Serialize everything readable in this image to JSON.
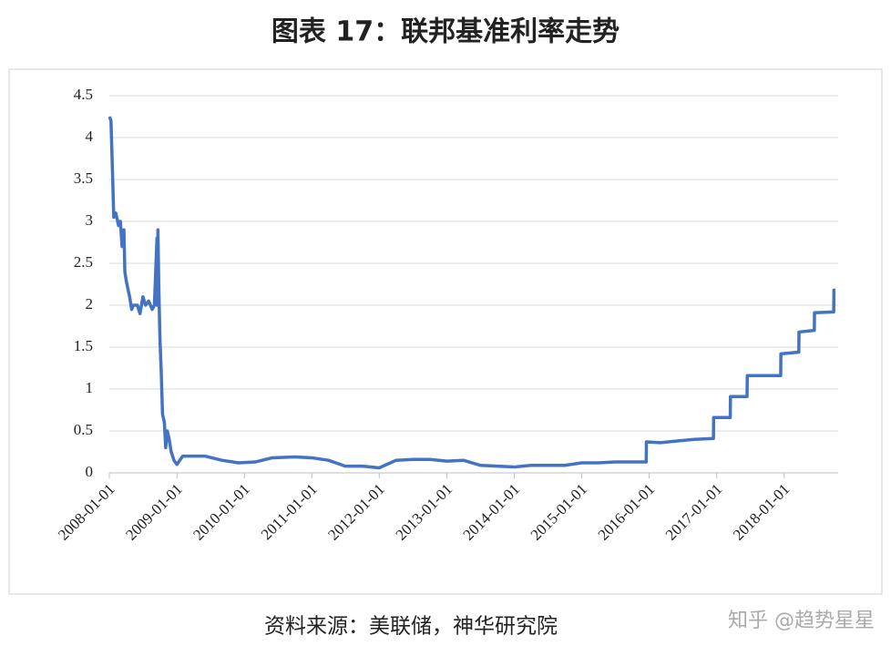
{
  "chart_data": {
    "type": "line",
    "title": "图表 17：联邦基准利率走势",
    "source": "资料来源：美联储，神华研究院",
    "watermark": "知乎 @趋势星星",
    "color": "#4472c4",
    "grid": true,
    "xlim": [
      "2008-01-01",
      "2018-10-20"
    ],
    "xticks": [
      "2008-01-01",
      "2009-01-01",
      "2010-01-01",
      "2011-01-01",
      "2012-01-01",
      "2013-01-01",
      "2014-01-01",
      "2015-01-01",
      "2016-01-01",
      "2017-01-01",
      "2018-01-01"
    ],
    "ylim": [
      0,
      4.5
    ],
    "yticks": [
      0,
      0.5,
      1,
      1.5,
      2,
      2.5,
      3,
      3.5,
      4,
      4.5
    ],
    "x": [
      "2008-01-02",
      "2008-01-10",
      "2008-01-18",
      "2008-01-25",
      "2008-02-05",
      "2008-02-20",
      "2008-03-01",
      "2008-03-10",
      "2008-03-20",
      "2008-03-25",
      "2008-04-01",
      "2008-04-10",
      "2008-04-20",
      "2008-05-01",
      "2008-05-10",
      "2008-06-01",
      "2008-06-15",
      "2008-07-01",
      "2008-07-15",
      "2008-08-01",
      "2008-08-20",
      "2008-09-01",
      "2008-09-15",
      "2008-09-16",
      "2008-09-20",
      "2008-09-25",
      "2008-10-01",
      "2008-10-08",
      "2008-10-15",
      "2008-10-25",
      "2008-11-01",
      "2008-11-10",
      "2008-11-20",
      "2008-12-01",
      "2008-12-16",
      "2009-01-01",
      "2009-02-01",
      "2009-03-15",
      "2009-06-01",
      "2009-09-01",
      "2009-12-01",
      "2010-03-01",
      "2010-06-01",
      "2010-10-01",
      "2011-01-01",
      "2011-04-01",
      "2011-07-01",
      "2011-10-01",
      "2012-01-01",
      "2012-04-01",
      "2012-07-01",
      "2012-10-01",
      "2013-01-01",
      "2013-04-01",
      "2013-07-01",
      "2013-10-01",
      "2014-01-01",
      "2014-04-01",
      "2014-07-01",
      "2014-10-01",
      "2015-01-01",
      "2015-04-01",
      "2015-07-01",
      "2015-10-01",
      "2015-12-16",
      "2015-12-17",
      "2016-03-01",
      "2016-06-01",
      "2016-09-01",
      "2016-12-14",
      "2016-12-15",
      "2017-03-15",
      "2017-03-16",
      "2017-06-14",
      "2017-06-15",
      "2017-12-13",
      "2017-12-14",
      "2018-03-21",
      "2018-03-22",
      "2018-06-13",
      "2018-06-14",
      "2018-09-26",
      "2018-09-27",
      "2018-10-05"
    ],
    "values": [
      4.25,
      4.2,
      3.6,
      3.05,
      3.1,
      2.95,
      3.0,
      2.7,
      2.9,
      2.4,
      2.3,
      2.2,
      2.1,
      1.95,
      2.0,
      2.0,
      1.9,
      2.1,
      2.0,
      2.05,
      1.95,
      2.0,
      2.8,
      2.0,
      2.9,
      2.2,
      1.6,
      1.2,
      0.7,
      0.6,
      0.3,
      0.5,
      0.4,
      0.25,
      0.15,
      0.1,
      0.2,
      0.2,
      0.2,
      0.15,
      0.12,
      0.13,
      0.18,
      0.19,
      0.18,
      0.15,
      0.08,
      0.08,
      0.06,
      0.15,
      0.16,
      0.16,
      0.14,
      0.15,
      0.09,
      0.08,
      0.07,
      0.09,
      0.09,
      0.09,
      0.12,
      0.12,
      0.13,
      0.13,
      0.13,
      0.37,
      0.36,
      0.38,
      0.4,
      0.41,
      0.66,
      0.66,
      0.91,
      0.91,
      1.16,
      1.16,
      1.42,
      1.44,
      1.68,
      1.7,
      1.91,
      1.92,
      2.18,
      2.18
    ]
  }
}
